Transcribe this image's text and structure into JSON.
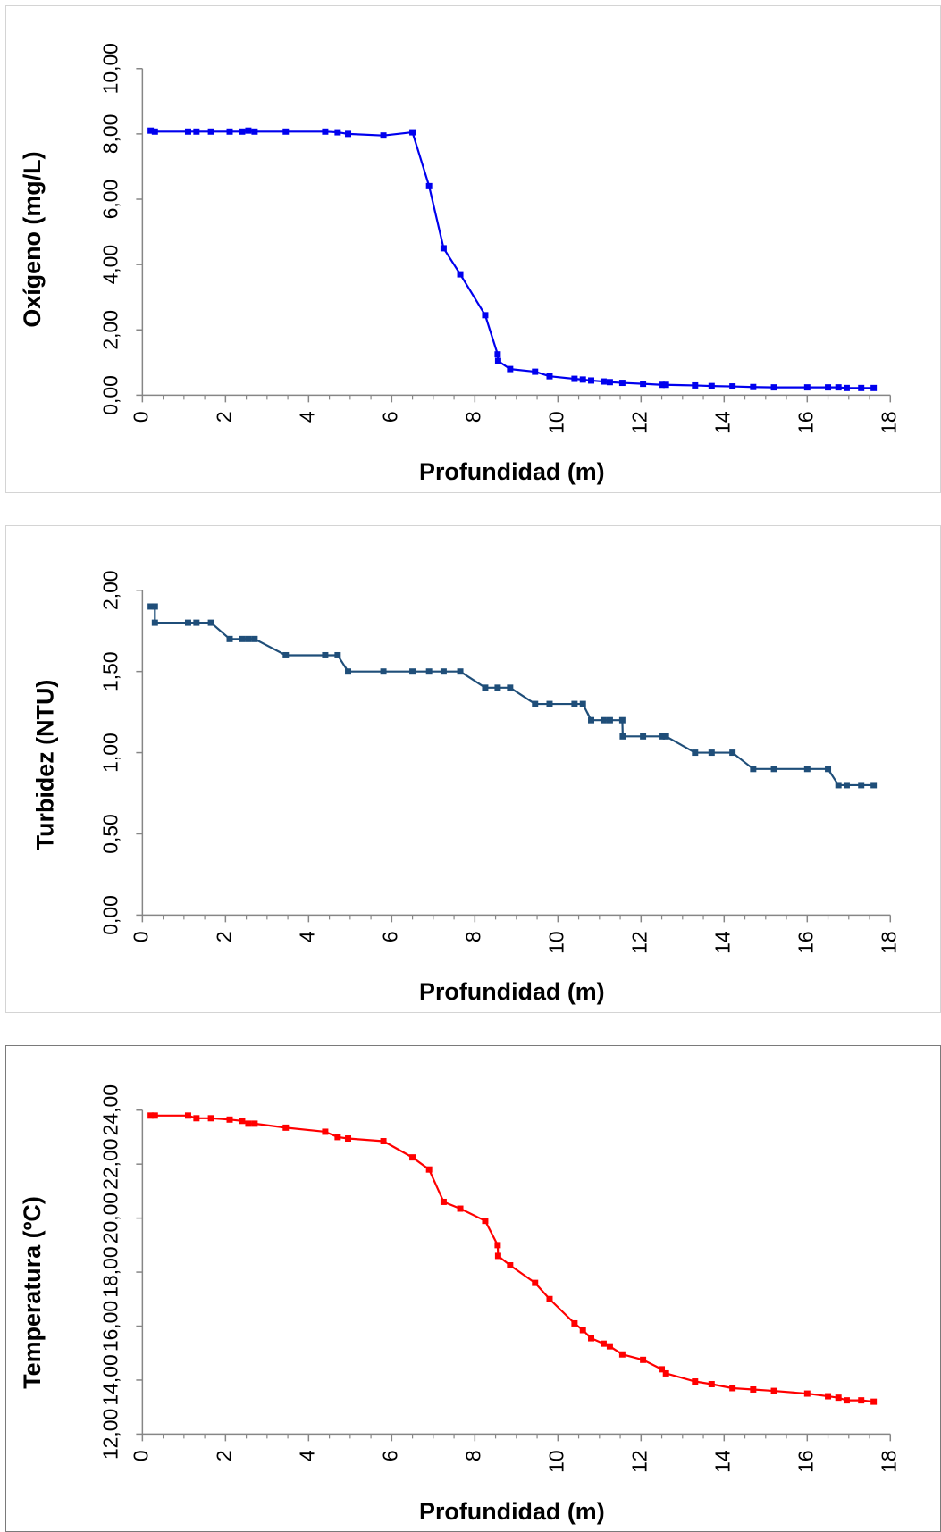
{
  "chart_data": [
    {
      "type": "line",
      "xlabel": "Profundidad (m)",
      "ylabel": "Oxígeno (mg/L)",
      "x_ticks": [
        "0",
        "2",
        "4",
        "6",
        "8",
        "10",
        "12",
        "14",
        "16",
        "18"
      ],
      "y_ticks": [
        "0,00",
        "2,00",
        "4,00",
        "6,00",
        "8,00",
        "10,00"
      ],
      "xlim": [
        0,
        18
      ],
      "ylim": [
        0,
        10
      ],
      "color": "#0000ee",
      "series": [
        {
          "x": [
            0.2,
            0.3,
            1.1,
            1.3,
            1.65,
            2.1,
            2.4,
            2.55,
            2.7,
            3.45,
            4.4,
            4.7,
            4.95,
            5.8,
            6.5,
            6.9,
            7.25,
            7.65,
            8.25,
            8.55,
            8.56,
            8.85,
            9.45,
            9.8,
            10.4,
            10.6,
            10.8,
            11.1,
            11.25,
            11.55,
            12.05,
            12.5,
            12.6,
            13.3,
            13.7,
            14.2,
            14.7,
            15.2,
            16.0,
            16.5,
            16.75,
            16.95,
            17.3,
            17.6
          ],
          "y": [
            8.1,
            8.07,
            8.07,
            8.07,
            8.07,
            8.07,
            8.07,
            8.1,
            8.07,
            8.07,
            8.07,
            8.05,
            8.0,
            7.95,
            8.05,
            6.4,
            4.5,
            3.7,
            2.45,
            1.25,
            1.05,
            0.8,
            0.72,
            0.58,
            0.5,
            0.48,
            0.45,
            0.42,
            0.4,
            0.38,
            0.35,
            0.32,
            0.32,
            0.3,
            0.28,
            0.27,
            0.25,
            0.24,
            0.24,
            0.24,
            0.24,
            0.22,
            0.22,
            0.22
          ]
        }
      ]
    },
    {
      "type": "line",
      "xlabel": "Profundidad (m)",
      "ylabel": "Turbidez (NTU)",
      "x_ticks": [
        "0",
        "2",
        "4",
        "6",
        "8",
        "10",
        "12",
        "14",
        "16",
        "18"
      ],
      "y_ticks": [
        "0,00",
        "0,50",
        "1,00",
        "1,50",
        "2,00"
      ],
      "xlim": [
        0,
        18
      ],
      "ylim": [
        0,
        2
      ],
      "color": "#1f4e79",
      "series": [
        {
          "x": [
            0.2,
            0.3,
            0.3,
            1.1,
            1.3,
            1.65,
            2.1,
            2.4,
            2.55,
            2.7,
            3.45,
            4.4,
            4.7,
            4.95,
            5.8,
            6.5,
            6.9,
            7.25,
            7.65,
            8.25,
            8.55,
            8.85,
            9.45,
            9.8,
            10.4,
            10.6,
            10.8,
            11.1,
            11.25,
            11.55,
            11.56,
            12.05,
            12.5,
            12.6,
            13.3,
            13.7,
            14.2,
            14.7,
            15.2,
            16.0,
            16.5,
            16.75,
            16.95,
            17.3,
            17.6
          ],
          "y": [
            1.9,
            1.9,
            1.8,
            1.8,
            1.8,
            1.8,
            1.7,
            1.7,
            1.7,
            1.7,
            1.6,
            1.6,
            1.6,
            1.5,
            1.5,
            1.5,
            1.5,
            1.5,
            1.5,
            1.4,
            1.4,
            1.4,
            1.3,
            1.3,
            1.3,
            1.3,
            1.2,
            1.2,
            1.2,
            1.2,
            1.1,
            1.1,
            1.1,
            1.1,
            1.0,
            1.0,
            1.0,
            0.9,
            0.9,
            0.9,
            0.9,
            0.8,
            0.8,
            0.8,
            0.8
          ]
        }
      ]
    },
    {
      "type": "line",
      "xlabel": "Profundidad (m)",
      "ylabel": "Temperatura (ºC)",
      "x_ticks": [
        "0",
        "2",
        "4",
        "6",
        "8",
        "10",
        "12",
        "14",
        "16",
        "18"
      ],
      "y_ticks": [
        "12,00",
        "14,00",
        "16,00",
        "18,00",
        "20,00",
        "22,00",
        "24,00"
      ],
      "xlim": [
        0,
        18
      ],
      "ylim": [
        12,
        24
      ],
      "color": "#ff0000",
      "series": [
        {
          "x": [
            0.2,
            0.3,
            1.1,
            1.3,
            1.65,
            2.1,
            2.4,
            2.55,
            2.7,
            3.45,
            4.4,
            4.7,
            4.95,
            5.8,
            6.5,
            6.9,
            7.25,
            7.65,
            8.25,
            8.55,
            8.56,
            8.85,
            9.45,
            9.8,
            10.4,
            10.6,
            10.8,
            11.1,
            11.25,
            11.55,
            12.05,
            12.5,
            12.6,
            13.3,
            13.7,
            14.2,
            14.7,
            15.2,
            16.0,
            16.5,
            16.75,
            16.95,
            17.3,
            17.6
          ],
          "y": [
            23.8,
            23.8,
            23.8,
            23.7,
            23.7,
            23.65,
            23.6,
            23.5,
            23.5,
            23.35,
            23.2,
            23.0,
            22.95,
            22.85,
            22.25,
            21.8,
            20.6,
            20.35,
            19.9,
            19.0,
            18.6,
            18.25,
            17.6,
            17.0,
            16.1,
            15.85,
            15.55,
            15.35,
            15.25,
            14.95,
            14.75,
            14.4,
            14.25,
            13.95,
            13.85,
            13.7,
            13.65,
            13.6,
            13.5,
            13.4,
            13.35,
            13.25,
            13.25,
            13.2
          ]
        }
      ]
    }
  ]
}
